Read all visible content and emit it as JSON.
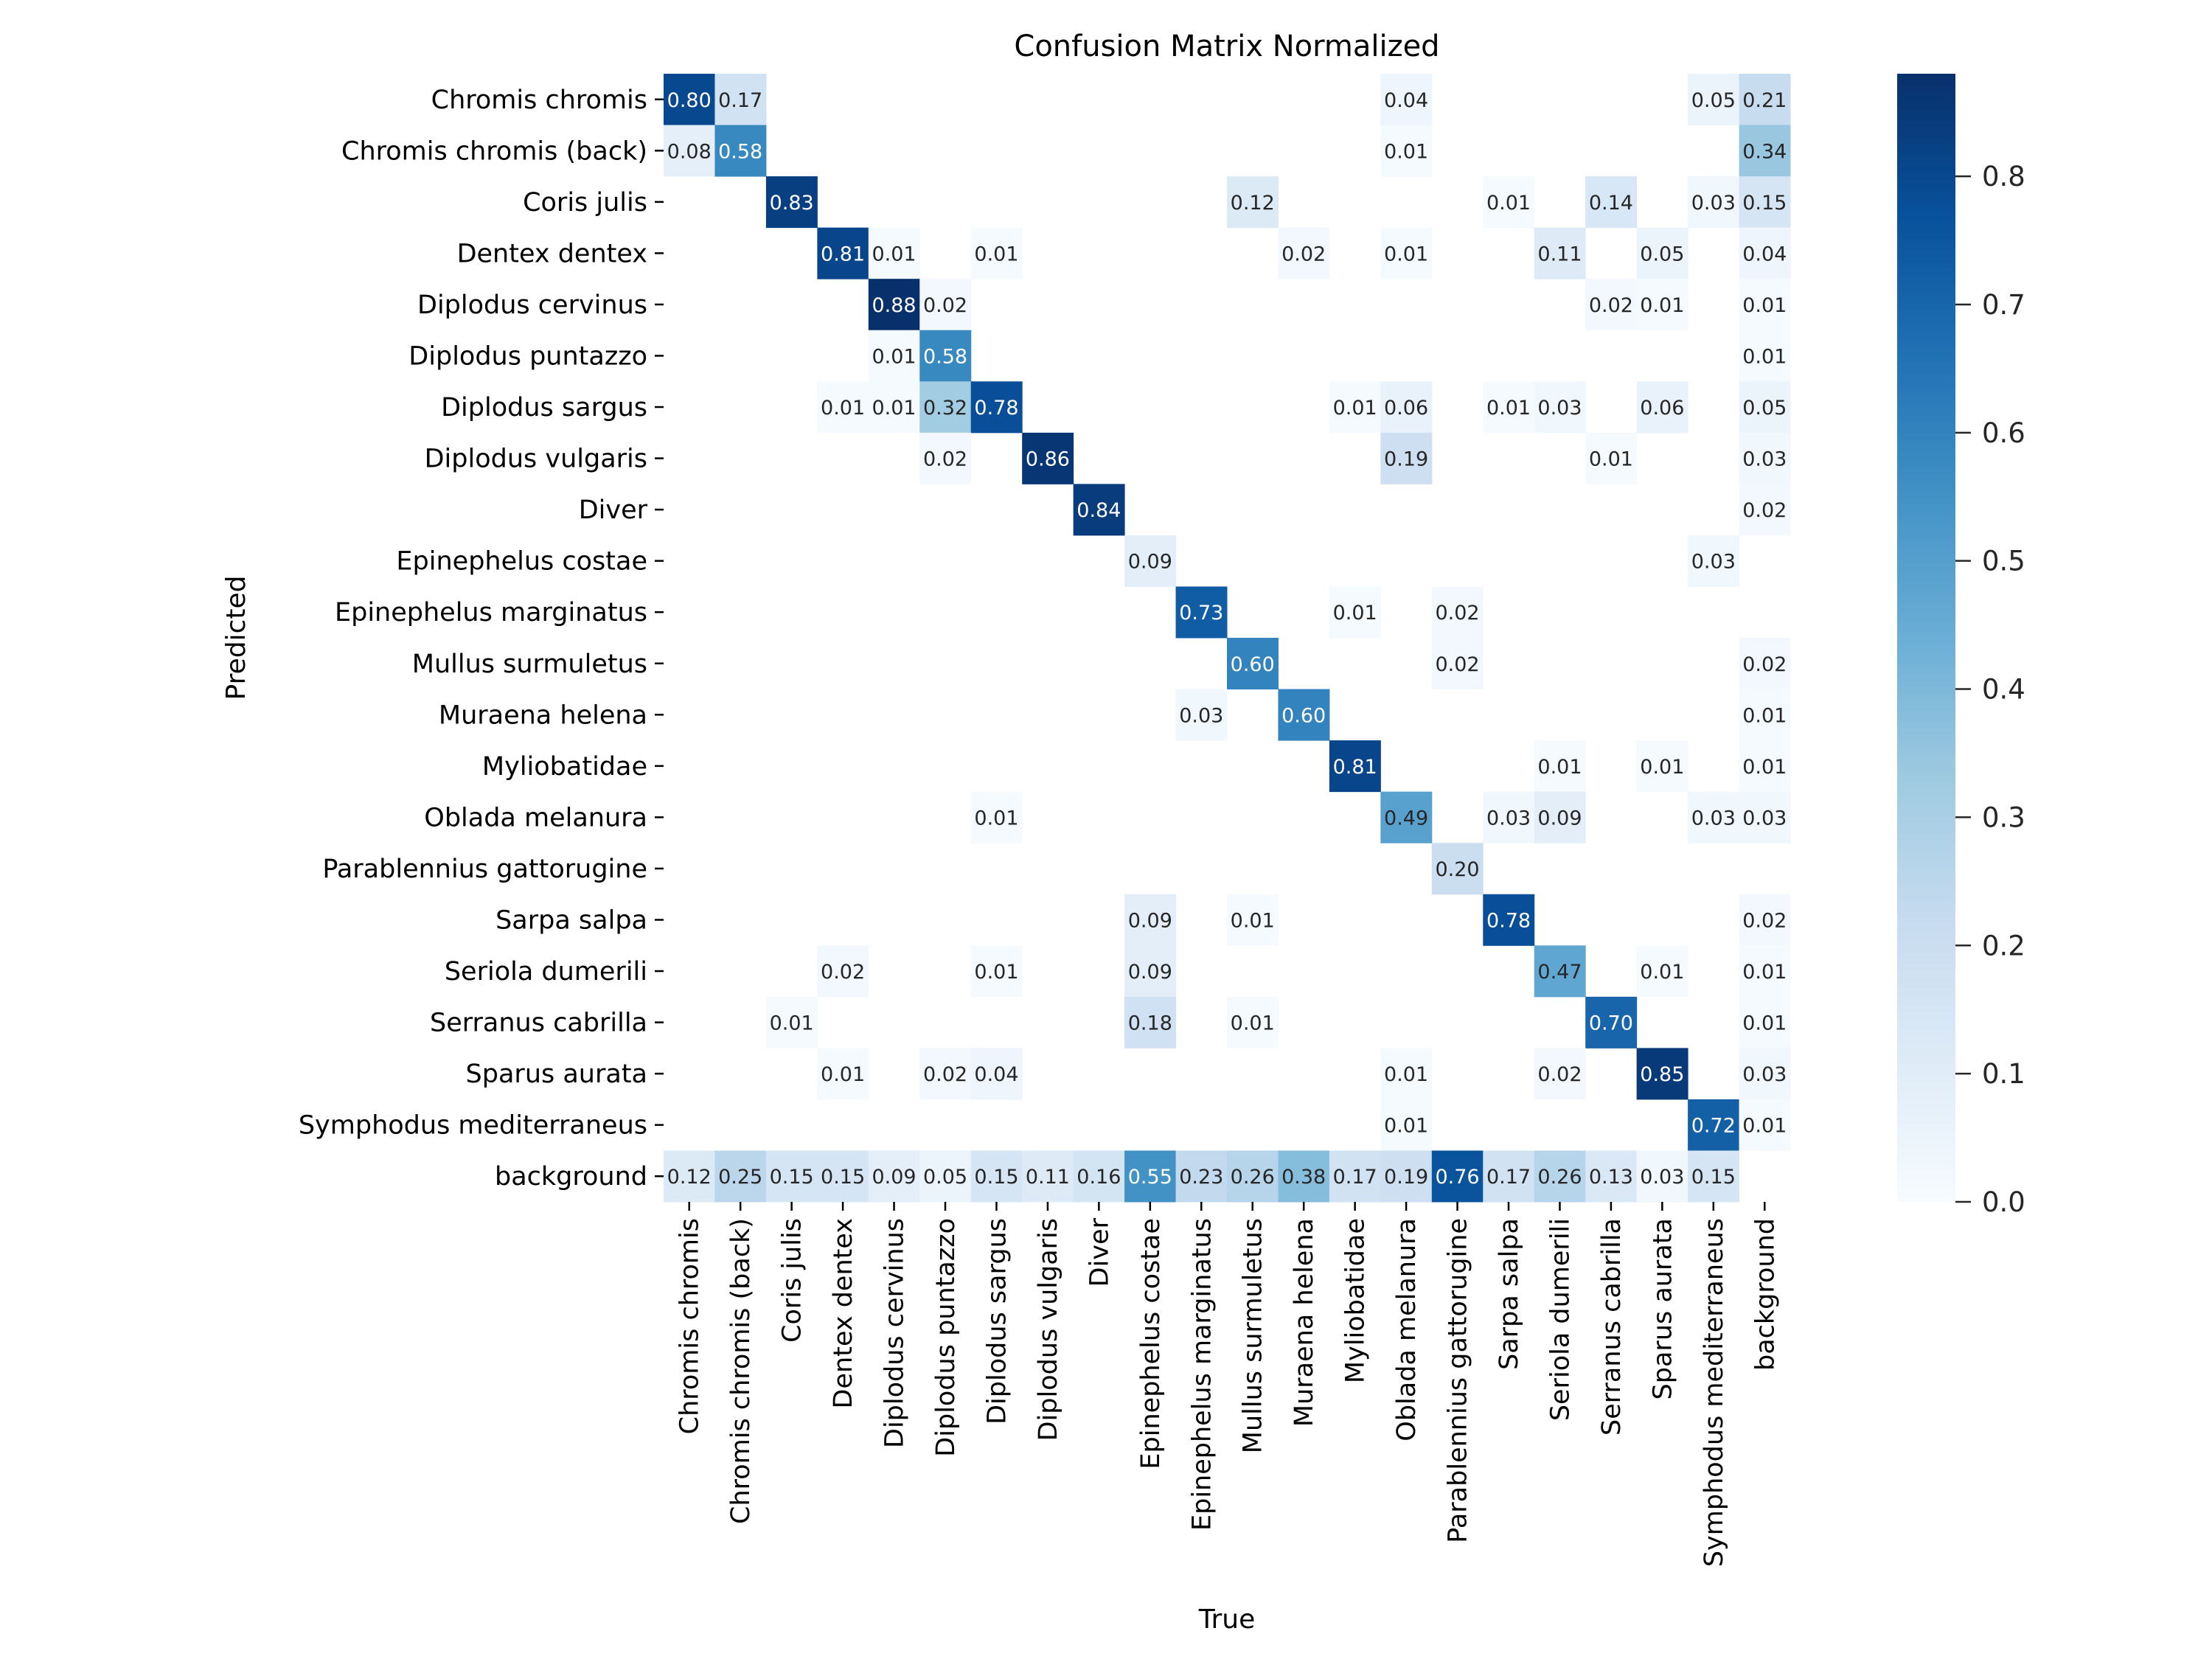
{
  "chart_data": {
    "type": "heatmap",
    "title": "Confusion Matrix Normalized",
    "xlabel": "True",
    "ylabel": "Predicted",
    "colormap": "Blues",
    "colorbar": {
      "range": [
        0.0,
        0.88
      ],
      "ticks": [
        0.0,
        0.1,
        0.2,
        0.3,
        0.4,
        0.5,
        0.6,
        0.7,
        0.8
      ],
      "tick_labels": [
        "0.0",
        "0.1",
        "0.2",
        "0.3",
        "0.4",
        "0.5",
        "0.6",
        "0.7",
        "0.8"
      ],
      "placement": "right"
    },
    "x_categories": [
      "Chromis chromis",
      "Chromis chromis (back)",
      "Coris julis",
      "Dentex dentex",
      "Diplodus cervinus",
      "Diplodus puntazzo",
      "Diplodus sargus",
      "Diplodus vulgaris",
      "Diver",
      "Epinephelus costae",
      "Epinephelus marginatus",
      "Mullus surmuletus",
      "Muraena helena",
      "Myliobatidae",
      "Oblada melanura",
      "Parablennius gattorugine",
      "Sarpa salpa",
      "Seriola dumerili",
      "Serranus cabrilla",
      "Sparus aurata",
      "Symphodus mediterraneus",
      "background"
    ],
    "y_categories": [
      "Chromis chromis",
      "Chromis chromis (back)",
      "Coris julis",
      "Dentex dentex",
      "Diplodus cervinus",
      "Diplodus puntazzo",
      "Diplodus sargus",
      "Diplodus vulgaris",
      "Diver",
      "Epinephelus costae",
      "Epinephelus marginatus",
      "Mullus surmuletus",
      "Muraena helena",
      "Myliobatidae",
      "Oblada melanura",
      "Parablennius gattorugine",
      "Sarpa salpa",
      "Seriola dumerili",
      "Serranus cabrilla",
      "Sparus aurata",
      "Symphodus mediterraneus",
      "background"
    ],
    "values": [
      [
        0.8,
        0.17,
        null,
        null,
        null,
        null,
        null,
        null,
        null,
        null,
        null,
        null,
        null,
        null,
        0.04,
        null,
        null,
        null,
        null,
        null,
        0.05,
        0.21
      ],
      [
        0.08,
        0.58,
        null,
        null,
        null,
        null,
        null,
        null,
        null,
        null,
        null,
        null,
        null,
        null,
        0.01,
        null,
        null,
        null,
        null,
        null,
        null,
        0.34
      ],
      [
        null,
        null,
        0.83,
        null,
        null,
        null,
        null,
        null,
        null,
        null,
        null,
        0.12,
        null,
        null,
        null,
        null,
        0.01,
        null,
        0.14,
        null,
        0.03,
        0.15
      ],
      [
        null,
        null,
        null,
        0.81,
        0.01,
        null,
        0.01,
        null,
        null,
        null,
        null,
        null,
        0.02,
        null,
        0.01,
        null,
        null,
        0.11,
        null,
        0.05,
        null,
        0.04
      ],
      [
        null,
        null,
        null,
        null,
        0.88,
        0.02,
        null,
        null,
        null,
        null,
        null,
        null,
        null,
        null,
        null,
        null,
        null,
        null,
        0.02,
        0.01,
        null,
        0.01
      ],
      [
        null,
        null,
        null,
        null,
        0.01,
        0.58,
        null,
        null,
        null,
        null,
        null,
        null,
        null,
        null,
        null,
        null,
        null,
        null,
        null,
        null,
        null,
        0.01
      ],
      [
        null,
        null,
        null,
        0.01,
        0.01,
        0.32,
        0.78,
        null,
        null,
        null,
        null,
        null,
        null,
        0.01,
        0.06,
        null,
        0.01,
        0.03,
        null,
        0.06,
        null,
        0.05
      ],
      [
        null,
        null,
        null,
        null,
        null,
        0.02,
        null,
        0.86,
        null,
        null,
        null,
        null,
        null,
        null,
        0.19,
        null,
        null,
        null,
        0.01,
        null,
        null,
        0.03
      ],
      [
        null,
        null,
        null,
        null,
        null,
        null,
        null,
        null,
        0.84,
        null,
        null,
        null,
        null,
        null,
        null,
        null,
        null,
        null,
        null,
        null,
        null,
        0.02
      ],
      [
        null,
        null,
        null,
        null,
        null,
        null,
        null,
        null,
        null,
        0.09,
        null,
        null,
        null,
        null,
        null,
        null,
        null,
        null,
        null,
        null,
        0.03,
        null
      ],
      [
        null,
        null,
        null,
        null,
        null,
        null,
        null,
        null,
        null,
        null,
        0.73,
        null,
        null,
        0.01,
        null,
        0.02,
        null,
        null,
        null,
        null,
        null,
        null
      ],
      [
        null,
        null,
        null,
        null,
        null,
        null,
        null,
        null,
        null,
        null,
        null,
        0.6,
        null,
        null,
        null,
        0.02,
        null,
        null,
        null,
        null,
        null,
        0.02
      ],
      [
        null,
        null,
        null,
        null,
        null,
        null,
        null,
        null,
        null,
        null,
        0.03,
        null,
        0.6,
        null,
        null,
        null,
        null,
        null,
        null,
        null,
        null,
        0.01
      ],
      [
        null,
        null,
        null,
        null,
        null,
        null,
        null,
        null,
        null,
        null,
        null,
        null,
        null,
        0.81,
        null,
        null,
        null,
        0.01,
        null,
        0.01,
        null,
        0.01
      ],
      [
        null,
        null,
        null,
        null,
        null,
        null,
        0.01,
        null,
        null,
        null,
        null,
        null,
        null,
        null,
        0.49,
        null,
        0.03,
        0.09,
        null,
        null,
        0.03,
        0.03
      ],
      [
        null,
        null,
        null,
        null,
        null,
        null,
        null,
        null,
        null,
        null,
        null,
        null,
        null,
        null,
        null,
        0.2,
        null,
        null,
        null,
        null,
        null,
        null
      ],
      [
        null,
        null,
        null,
        null,
        null,
        null,
        null,
        null,
        null,
        0.09,
        null,
        0.01,
        null,
        null,
        null,
        null,
        0.78,
        null,
        null,
        null,
        null,
        0.02
      ],
      [
        null,
        null,
        null,
        0.02,
        null,
        null,
        0.01,
        null,
        null,
        0.09,
        null,
        null,
        null,
        null,
        null,
        null,
        null,
        0.47,
        null,
        0.01,
        null,
        0.01
      ],
      [
        null,
        null,
        0.01,
        null,
        null,
        null,
        null,
        null,
        null,
        0.18,
        null,
        0.01,
        null,
        null,
        null,
        null,
        null,
        null,
        0.7,
        null,
        null,
        0.01
      ],
      [
        null,
        null,
        null,
        0.01,
        null,
        0.02,
        0.04,
        null,
        null,
        null,
        null,
        null,
        null,
        null,
        0.01,
        null,
        null,
        0.02,
        null,
        0.85,
        null,
        0.03
      ],
      [
        null,
        null,
        null,
        null,
        null,
        null,
        null,
        null,
        null,
        null,
        null,
        null,
        null,
        null,
        0.01,
        null,
        null,
        null,
        null,
        null,
        0.72,
        0.01
      ],
      [
        0.12,
        0.25,
        0.15,
        0.15,
        0.09,
        0.05,
        0.15,
        0.11,
        0.16,
        0.55,
        0.23,
        0.26,
        0.38,
        0.17,
        0.19,
        0.76,
        0.17,
        0.26,
        0.13,
        0.03,
        0.15,
        null
      ]
    ],
    "value_format": "2 decimals",
    "empty_cells": "values below 0.005 not shown (blank)"
  }
}
